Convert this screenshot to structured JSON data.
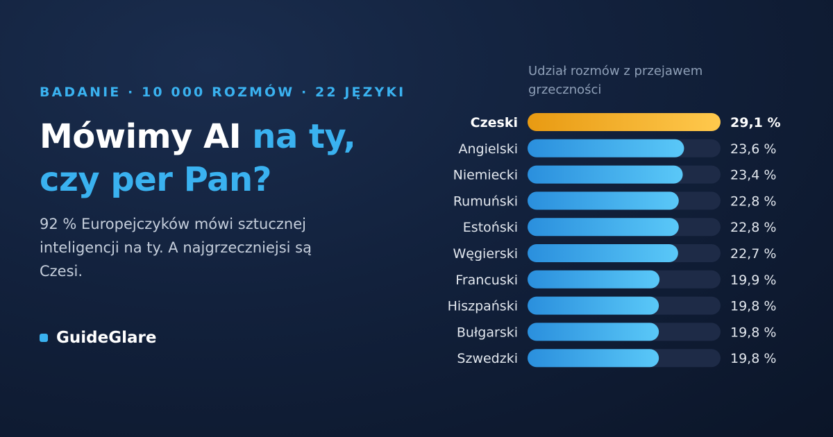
{
  "eyebrow": "BADANIE · 10 000 ROZMÓW · 22 JĘZYKI",
  "headline": {
    "part1": "Mówimy AI ",
    "part2": "na ty, czy per Pan?"
  },
  "subtitle": "92 % Europejczyków mówi sztucznej inteligencji na ty. A najgrzeczniejsi są Czesi.",
  "brand": "GuideGlare",
  "colors": {
    "accent": "#3ab2f0",
    "highlight_bar_start": "#e89a12",
    "highlight_bar_end": "#ffc94d",
    "bar_start": "#2a8fdd",
    "bar_end": "#5ac8f8",
    "track": "#1e2b47"
  },
  "chart_data": {
    "type": "bar",
    "orientation": "horizontal",
    "title": "Udział rozmów z przejawem grzeczności",
    "categories": [
      "Czeski",
      "Angielski",
      "Niemiecki",
      "Rumuński",
      "Estoński",
      "Węgierski",
      "Francuski",
      "Hiszpański",
      "Bułgarski",
      "Szwedzki"
    ],
    "values": [
      29.1,
      23.6,
      23.4,
      22.8,
      22.8,
      22.7,
      19.9,
      19.8,
      19.8,
      19.8
    ],
    "value_labels": [
      "29,1 %",
      "23,6 %",
      "23,4 %",
      "22,8 %",
      "22,8 %",
      "22,7 %",
      "19,9 %",
      "19,8 %",
      "19,8 %",
      "19,8 %"
    ],
    "highlight": "Czeski",
    "xlim": [
      0,
      29.1
    ],
    "grid": false
  }
}
